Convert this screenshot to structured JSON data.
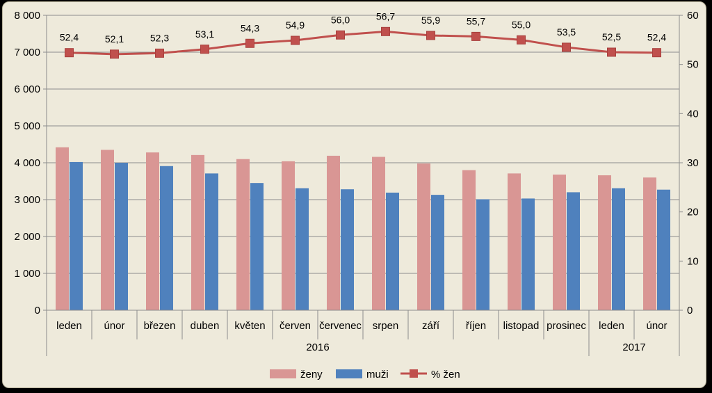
{
  "chart_data": {
    "type": "bar+line",
    "categories": [
      "leden",
      "únor",
      "březen",
      "duben",
      "květen",
      "červen",
      "červenec",
      "srpen",
      "září",
      "říjen",
      "listopad",
      "prosinec",
      "leden",
      "únor"
    ],
    "groups": [
      {
        "label": "2016",
        "span": 12
      },
      {
        "label": "2017",
        "span": 2
      }
    ],
    "series": [
      {
        "name": "ženy",
        "type": "bar",
        "axis": "left",
        "color": "#d99694",
        "values": [
          4420,
          4350,
          4280,
          4210,
          4100,
          4040,
          4190,
          4160,
          3980,
          3800,
          3710,
          3680,
          3660,
          3600
        ]
      },
      {
        "name": "muži",
        "type": "bar",
        "axis": "left",
        "color": "#4f81bd",
        "values": [
          4020,
          4000,
          3910,
          3710,
          3450,
          3310,
          3280,
          3190,
          3130,
          3010,
          3030,
          3200,
          3310,
          3270
        ]
      },
      {
        "name": "% žen",
        "type": "line",
        "axis": "right",
        "color": "#c0504d",
        "values": [
          52.4,
          52.1,
          52.3,
          53.1,
          54.3,
          54.9,
          56.0,
          56.7,
          55.9,
          55.7,
          55.0,
          53.5,
          52.5,
          52.4
        ],
        "labels": [
          "52,4",
          "52,1",
          "52,3",
          "53,1",
          "54,3",
          "54,9",
          "56,0",
          "56,7",
          "55,9",
          "55,7",
          "55,0",
          "53,5",
          "52,5",
          "52,4"
        ]
      }
    ],
    "ylim_left": [
      0,
      8000
    ],
    "yticks_left": [
      "0",
      "1 000",
      "2 000",
      "3 000",
      "4 000",
      "5 000",
      "6 000",
      "7 000",
      "8 000"
    ],
    "ylim_right": [
      0,
      60
    ],
    "yticks_right": [
      "0",
      "10",
      "20",
      "30",
      "40",
      "50",
      "60"
    ],
    "grid": true,
    "legend_position": "bottom"
  }
}
